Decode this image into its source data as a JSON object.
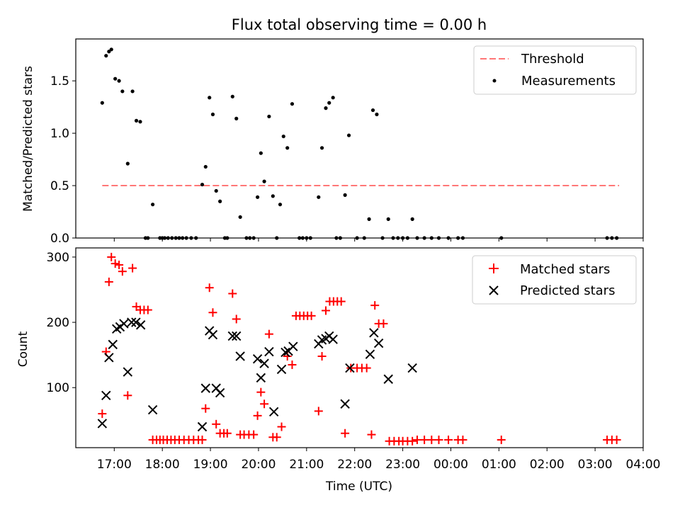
{
  "chart_data": [
    {
      "type": "scatter",
      "title": "Flux total observing time = 0.00 h",
      "ylabel": "Matched/Predicted stars",
      "xlim_hours": [
        16.2,
        28.0
      ],
      "ylim": [
        0,
        1.9
      ],
      "yticks": [
        "0.0",
        "0.5",
        "1.0",
        "1.5"
      ],
      "ytick_values": [
        0,
        0.5,
        1.0,
        1.5
      ],
      "legend_position": "upper right",
      "legend": [
        {
          "label": "Threshold",
          "style": "dashed-line",
          "color": "#ff7777"
        },
        {
          "label": "Measurements",
          "style": "dot",
          "color": "#000000"
        }
      ],
      "threshold": {
        "value": 0.5,
        "x_start": 16.75,
        "x_end": 27.5,
        "color": "#ff7777"
      },
      "measurements": {
        "x": [
          16.75,
          16.83,
          16.89,
          16.94,
          17.02,
          17.1,
          17.17,
          17.28,
          17.38,
          17.46,
          17.54,
          17.8,
          17.65,
          17.7,
          17.95,
          18.0,
          18.05,
          18.12,
          18.2,
          18.28,
          18.35,
          18.42,
          18.5,
          18.6,
          18.7,
          18.83,
          18.9,
          18.98,
          19.05,
          19.12,
          19.2,
          19.3,
          19.35,
          19.46,
          19.54,
          19.62,
          19.75,
          19.82,
          19.9,
          19.98,
          20.05,
          20.12,
          20.22,
          20.3,
          20.38,
          20.45,
          20.52,
          20.6,
          20.7,
          20.85,
          20.92,
          21.0,
          21.08,
          21.25,
          21.32,
          21.4,
          21.47,
          21.55,
          21.62,
          21.7,
          21.8,
          21.88,
          22.05,
          22.2,
          22.3,
          22.38,
          22.46,
          22.58,
          22.7,
          22.8,
          22.9,
          23.0,
          23.1,
          23.2,
          23.3,
          23.45,
          23.6,
          23.75,
          23.95,
          24.15,
          24.25,
          25.05,
          27.25,
          27.35,
          27.45
        ],
        "y": [
          1.29,
          1.74,
          1.78,
          1.8,
          1.52,
          1.5,
          1.4,
          0.71,
          1.4,
          1.12,
          1.11,
          0.32,
          0.0,
          0.0,
          0.0,
          0.0,
          0.0,
          0.0,
          0.0,
          0.0,
          0.0,
          0.0,
          0.0,
          0.0,
          0.0,
          0.51,
          0.68,
          1.34,
          1.18,
          0.45,
          0.35,
          0.0,
          0.0,
          1.35,
          1.14,
          0.2,
          0.0,
          0.0,
          0.0,
          0.39,
          0.81,
          0.54,
          1.16,
          0.4,
          0.0,
          0.32,
          0.97,
          0.86,
          1.28,
          0.0,
          0.0,
          0.0,
          0.0,
          0.39,
          0.86,
          1.24,
          1.29,
          1.34,
          0.0,
          0.0,
          0.41,
          0.98,
          0.0,
          0.0,
          0.18,
          1.22,
          1.18,
          0.0,
          0.18,
          0.0,
          0.0,
          0.0,
          0.0,
          0.18,
          0.0,
          0.0,
          0.0,
          0.0,
          0.0,
          0.0,
          0.0,
          0.0,
          0.0,
          0.0,
          0.0
        ]
      }
    },
    {
      "type": "scatter",
      "xlabel": "Time (UTC)",
      "ylabel": "Count",
      "xlim_hours": [
        16.2,
        28.0
      ],
      "ylim": [
        8,
        314
      ],
      "yticks": [
        "100",
        "200",
        "300"
      ],
      "ytick_values": [
        100,
        200,
        300
      ],
      "xticks": [
        "17:00",
        "18:00",
        "19:00",
        "20:00",
        "21:00",
        "22:00",
        "23:00",
        "00:00",
        "01:00",
        "02:00",
        "03:00",
        "04:00"
      ],
      "xtick_hours": [
        17,
        18,
        19,
        20,
        21,
        22,
        23,
        24,
        25,
        26,
        27,
        28
      ],
      "legend_position": "upper right",
      "legend": [
        {
          "label": "Matched stars",
          "marker": "plus",
          "color": "#ff0000"
        },
        {
          "label": "Predicted stars",
          "marker": "x",
          "color": "#000000"
        }
      ],
      "series": [
        {
          "name": "Matched stars",
          "color": "#ff0000",
          "x": [
            16.75,
            16.83,
            16.89,
            16.94,
            17.02,
            17.1,
            17.17,
            17.28,
            17.38,
            17.46,
            17.54,
            17.62,
            17.7,
            17.8,
            17.88,
            17.95,
            18.02,
            18.1,
            18.18,
            18.26,
            18.35,
            18.45,
            18.55,
            18.65,
            18.75,
            18.83,
            18.9,
            18.98,
            19.05,
            19.12,
            19.2,
            19.28,
            19.35,
            19.46,
            19.54,
            19.62,
            19.7,
            19.8,
            19.9,
            19.98,
            20.05,
            20.12,
            20.22,
            20.3,
            20.38,
            20.48,
            20.6,
            20.7,
            20.78,
            20.86,
            20.94,
            21.02,
            21.1,
            21.25,
            21.32,
            21.4,
            21.48,
            21.56,
            21.64,
            21.72,
            21.8,
            21.92,
            22.05,
            22.15,
            22.25,
            22.35,
            22.42,
            22.5,
            22.6,
            22.72,
            22.82,
            22.92,
            23.0,
            23.1,
            23.2,
            23.3,
            23.45,
            23.6,
            23.75,
            23.95,
            24.15,
            24.25,
            25.05,
            27.25,
            27.35,
            27.45
          ],
          "y": [
            60,
            155,
            262,
            300,
            290,
            288,
            278,
            88,
            283,
            224,
            219,
            219,
            219,
            20,
            20,
            20,
            20,
            20,
            20,
            20,
            20,
            20,
            20,
            20,
            20,
            20,
            68,
            253,
            215,
            44,
            30,
            30,
            30,
            244,
            205,
            28,
            28,
            28,
            28,
            57,
            93,
            75,
            182,
            24,
            24,
            40,
            148,
            135,
            210,
            210,
            210,
            210,
            210,
            64,
            148,
            218,
            232,
            232,
            232,
            232,
            30,
            130,
            130,
            130,
            130,
            28,
            226,
            198,
            198,
            18,
            18,
            18,
            18,
            18,
            18,
            20,
            20,
            20,
            20,
            20,
            20,
            20,
            20,
            20,
            20,
            20
          ]
        },
        {
          "name": "Predicted stars",
          "color": "#000000",
          "x": [
            16.75,
            16.83,
            16.89,
            16.97,
            17.05,
            17.12,
            17.2,
            17.28,
            17.36,
            17.45,
            17.55,
            17.8,
            18.83,
            18.9,
            18.98,
            19.05,
            19.12,
            19.2,
            19.46,
            19.54,
            19.62,
            19.98,
            20.05,
            20.12,
            20.22,
            20.32,
            20.48,
            20.56,
            20.62,
            20.72,
            21.25,
            21.32,
            21.4,
            21.47,
            21.55,
            21.8,
            21.9,
            22.32,
            22.4,
            22.5,
            22.7,
            23.2
          ],
          "y": [
            45,
            88,
            146,
            166,
            190,
            193,
            198,
            124,
            200,
            200,
            196,
            66,
            40,
            99,
            187,
            181,
            99,
            92,
            179,
            179,
            148,
            144,
            115,
            137,
            155,
            63,
            128,
            154,
            156,
            163,
            167,
            173,
            175,
            179,
            174,
            75,
            130,
            151,
            184,
            168,
            113,
            130
          ]
        }
      ]
    }
  ]
}
